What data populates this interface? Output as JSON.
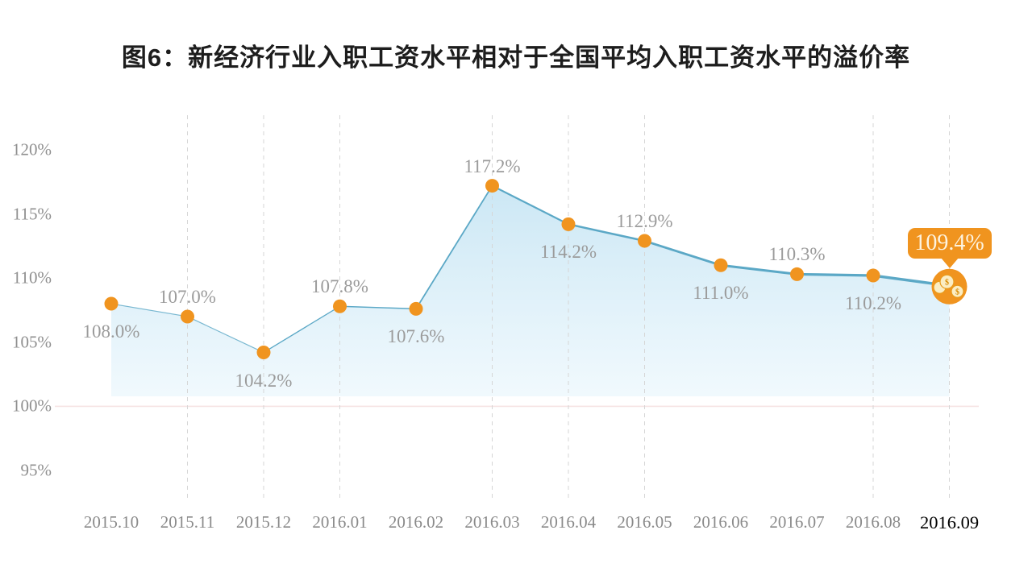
{
  "title": "图6：新经济行业入职工资水平相对于全国平均入职工资水平的溢价率",
  "colors": {
    "title": "#1d1d1d",
    "line": "#5ba8c6",
    "marker": "#f0941f",
    "area_top": "#c9e6f4",
    "area_bottom": "#eef8fd",
    "grid": "#d6d6d6",
    "baseline": "#f6e3e3",
    "data_label": "#9b9b9b",
    "axis_label": "#8a8a8a",
    "axis_label_current": "#000000",
    "callout_bg": "#f0941f",
    "callout_text": "#fdf3df",
    "coin_fill": "#fbedc4",
    "coin_edge": "#e89b1c",
    "coin_symbol": "#d98a00"
  },
  "chart_data": {
    "type": "line",
    "title": "图6：新经济行业入职工资水平相对于全国平均入职工资水平的溢价率",
    "categories": [
      "2015.10",
      "2015.11",
      "2015.12",
      "2016.01",
      "2016.02",
      "2016.03",
      "2016.04",
      "2016.05",
      "2016.06",
      "2016.07",
      "2016.08",
      "2016.09"
    ],
    "values": [
      108.0,
      107.0,
      104.2,
      107.8,
      107.6,
      117.2,
      114.2,
      112.9,
      111.0,
      110.3,
      110.2,
      109.4
    ],
    "point_labels": [
      "108.0%",
      "107.0%",
      "104.2%",
      "107.8%",
      "107.6%",
      "117.2%",
      "114.2%",
      "112.9%",
      "111.0%",
      "110.3%",
      "110.2%",
      "109.4%"
    ],
    "label_positions": [
      "below",
      "above",
      "below",
      "above",
      "below",
      "above",
      "below",
      "above",
      "below",
      "above",
      "below",
      "callout"
    ],
    "y_tick_labels": [
      "120%",
      "115%",
      "110%",
      "105%",
      "100%",
      "95%"
    ],
    "y_tick_values": [
      120,
      115,
      110,
      105,
      100,
      95
    ],
    "ylabel": "",
    "xlabel": "",
    "ylim": [
      95,
      120
    ],
    "baseline_value": 100,
    "grid": "vertical-dashed",
    "gridline_categories": [
      "2015.11",
      "2015.12",
      "2016.01",
      "2016.03",
      "2016.04",
      "2016.05",
      "2016.08",
      "2016.09"
    ],
    "legend_position": "none",
    "highlight": {
      "category": "2016.09",
      "label": "109.4%",
      "icon": "coins-icon"
    },
    "callout_label": "109.4%"
  }
}
